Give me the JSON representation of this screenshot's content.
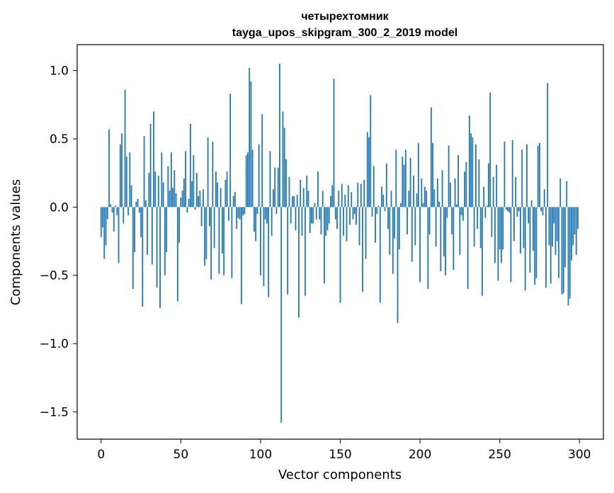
{
  "chart_data": {
    "type": "bar",
    "title": "четырехтомник",
    "subtitle": "tayga_upos_skipgram_300_2_2019 model",
    "xlabel": "Vector components",
    "ylabel": "Components values",
    "xlim": [
      -15,
      315
    ],
    "ylim": [
      -1.7,
      1.19
    ],
    "xticks": [
      0,
      50,
      100,
      150,
      200,
      250,
      300
    ],
    "yticks": [
      -1.5,
      -1.0,
      -0.5,
      0.0,
      0.5,
      1.0
    ],
    "ytick_labels": [
      "−1.5",
      "−1.0",
      "−0.5",
      "0.0",
      "0.5",
      "1.0"
    ],
    "grid": false,
    "bar_color": "#1f77b4",
    "values": [
      -0.22,
      -0.15,
      -0.38,
      -0.28,
      -0.09,
      0.57,
      0.02,
      -0.04,
      -0.18,
      0.01,
      -0.06,
      -0.41,
      0.46,
      0.54,
      -0.12,
      0.86,
      0.37,
      -0.06,
      0.4,
      0.16,
      -0.6,
      -0.33,
      0.04,
      0.06,
      -0.04,
      -0.22,
      -0.73,
      0.52,
      0.05,
      -0.35,
      0.25,
      0.61,
      -0.42,
      0.7,
      0.26,
      -0.59,
      0.23,
      -0.74,
      0.4,
      0.18,
      -0.5,
      -0.33,
      0.3,
      0.12,
      0.4,
      0.14,
      0.27,
      0.1,
      -0.69,
      -0.26,
      0.07,
      0.12,
      0.21,
      0.41,
      -0.04,
      0.06,
      0.61,
      0.19,
      0.38,
      -0.02,
      0.25,
      0.08,
      0.12,
      -0.14,
      0.13,
      -0.43,
      -0.38,
      0.51,
      -0.14,
      -0.53,
      0.48,
      -0.3,
      0.26,
      0.18,
      -0.49,
      0.14,
      -0.34,
      -0.5,
      0.2,
      0.26,
      -0.1,
      0.83,
      -0.52,
      0.08,
      0.11,
      -0.16,
      -0.08,
      -0.09,
      -0.71,
      -0.06,
      -0.05,
      0.38,
      0.4,
      1.02,
      0.92,
      0.42,
      -0.18,
      -0.25,
      -0.05,
      0.46,
      -0.5,
      0.68,
      -0.58,
      -0.09,
      -0.12,
      -0.66,
      0.41,
      -0.21,
      0.13,
      0.29,
      -0.05,
      0.29,
      1.05,
      -1.58,
      0.7,
      0.58,
      0.35,
      -0.64,
      0.22,
      -0.12,
      0.08,
      0.08,
      -0.17,
      0.09,
      -0.81,
      0.2,
      -0.21,
      0.14,
      -0.65,
      0.23,
      0.12,
      -0.19,
      -0.12,
      -0.12,
      0.03,
      -0.09,
      0.26,
      -0.09,
      -0.2,
      0.12,
      -0.56,
      -0.21,
      -0.17,
      -0.12,
      0.08,
      0.16,
      0.94,
      -0.09,
      -0.16,
      0.12,
      -0.7,
      0.17,
      -0.21,
      0.09,
      -0.25,
      0.16,
      -0.13,
      0.11,
      -0.09,
      -0.05,
      -0.13,
      0.18,
      -0.28,
      0.17,
      -0.62,
      0.2,
      -0.38,
      0.55,
      0.51,
      0.82,
      -0.07,
      0.3,
      -0.26,
      -0.05,
      0.01,
      -0.7,
      0.15,
      0.09,
      -0.03,
      0.32,
      -0.16,
      -0.35,
      0.12,
      -0.49,
      -0.23,
      0.42,
      -0.85,
      -0.31,
      0.03,
      0.37,
      0.31,
      0.42,
      -0.2,
      0.12,
      0.36,
      -0.4,
      0.23,
      -0.28,
      0.1,
      0.47,
      -0.55,
      0.21,
      0.03,
      0.15,
      0.12,
      -0.6,
      -0.2,
      0.73,
      0.47,
      0.13,
      -0.29,
      0.21,
      0.04,
      -0.47,
      0.27,
      -0.36,
      -0.5,
      -0.08,
      0.45,
      0.18,
      -0.2,
      -0.46,
      0.21,
      0.02,
      0.38,
      -0.35,
      -0.06,
      -0.1,
      0.26,
      0.33,
      -0.6,
      0.67,
      0.54,
      0.51,
      -0.29,
      0.46,
      -0.16,
      0.35,
      -0.3,
      -0.65,
      0.15,
      -0.08,
      0.01,
      0.32,
      0.84,
      -0.22,
      0.22,
      -0.41,
      0.31,
      -0.54,
      -0.31,
      -0.41,
      -0.31,
      0.48,
      -0.02,
      -0.03,
      -0.04,
      -0.55,
      0.49,
      -0.25,
      0.22,
      -0.07,
      -0.03,
      -0.34,
      0.42,
      -0.3,
      -0.61,
      0.46,
      -0.12,
      -0.48,
      0.05,
      -0.32,
      -0.57,
      -0.52,
      0.45,
      0.47,
      -0.03,
      -0.06,
      0.13,
      -0.59,
      0.91,
      -0.28,
      -0.56,
      -0.29,
      -0.12,
      -0.35,
      -0.25,
      -0.52,
      0.21,
      -0.64,
      -0.63,
      -0.44,
      0.19,
      -0.72,
      -0.67,
      -0.39,
      -0.28,
      -0.2,
      -0.35,
      -0.16
    ]
  }
}
